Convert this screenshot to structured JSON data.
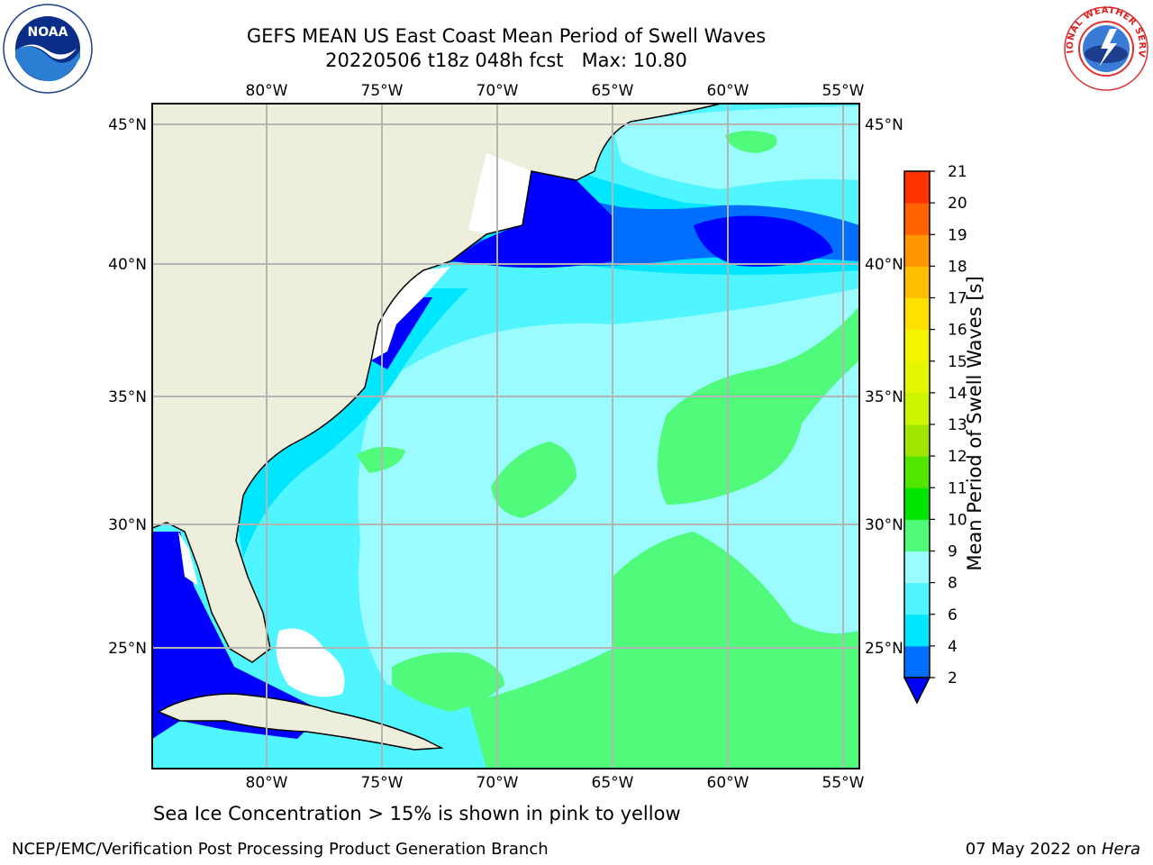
{
  "header": {
    "title_line1": "GEFS MEAN US East Coast Mean Period of Swell Waves",
    "title_line2": "20220506 t18z 048h fcst   Max: 10.80"
  },
  "logos": {
    "left": {
      "name": "noaa-logo",
      "text": "NOAA"
    },
    "right": {
      "name": "nws-logo",
      "text": "NATIONAL WEATHER SERVICE"
    }
  },
  "map": {
    "lon_ticks": [
      "80°W",
      "75°W",
      "70°W",
      "65°W",
      "60°W",
      "55°W"
    ],
    "lat_ticks": [
      "45°N",
      "40°N",
      "35°N",
      "30°N",
      "25°N"
    ],
    "colors": {
      "land": "#eeeedc",
      "white_mask": "#ffffff",
      "gridline": "#b4b4b4",
      "coast": "#000000"
    }
  },
  "colorbar": {
    "label": "Mean Period of Swell Waves [s]",
    "ticks": [
      "2",
      "4",
      "6",
      "8",
      "9",
      "10",
      "11",
      "12",
      "13",
      "14",
      "15",
      "16",
      "17",
      "18",
      "19",
      "20",
      "21"
    ],
    "colors": [
      "#006eff",
      "#00e6ff",
      "#4ff5ff",
      "#9afcff",
      "#50fa7a",
      "#00e600",
      "#50e600",
      "#a0e600",
      "#cdf500",
      "#e6f500",
      "#f5f500",
      "#ffe100",
      "#ffbe00",
      "#ff9600",
      "#ff6400",
      "#ff3200"
    ],
    "under_color": "#0000ff"
  },
  "caption": "Sea Ice Concentration > 15% is shown in pink to yellow",
  "footer": {
    "left": "NCEP/EMC/Verification Post Processing Product Generation Branch",
    "right_date": "07 May 2022 on ",
    "right_host": "Hera"
  }
}
